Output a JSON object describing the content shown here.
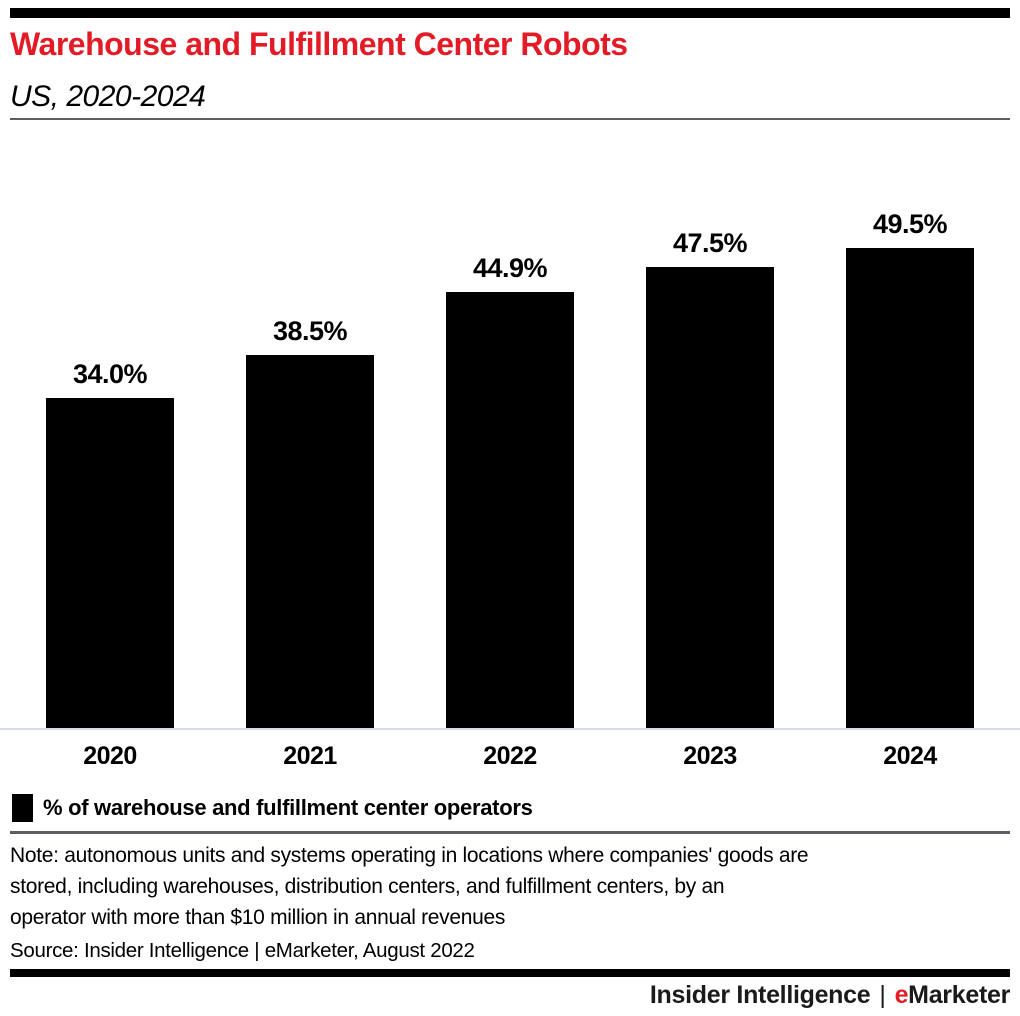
{
  "page": {
    "background": "#ffffff",
    "accent_red": "#e31b26",
    "divider_gray": "#5c5e63",
    "axis_line_color": "#d7dbe6"
  },
  "header": {
    "title": "Warehouse and Fulfillment Center Robots",
    "subtitle": "US, 2020-2024"
  },
  "chart_data": {
    "type": "bar",
    "title": "Warehouse and Fulfillment Center Robots",
    "subtitle": "US, 2020-2024",
    "categories": [
      "2020",
      "2021",
      "2022",
      "2023",
      "2024"
    ],
    "values": [
      34.0,
      38.5,
      44.9,
      47.5,
      49.5
    ],
    "value_labels": [
      "34.0%",
      "38.5%",
      "44.9%",
      "47.5%",
      "49.5%"
    ],
    "unit": "%",
    "xlabel": "",
    "ylabel": "",
    "ylim": [
      0,
      52
    ],
    "grid": false,
    "bar_color": "#000000",
    "legend": [
      {
        "label": "% of warehouse and fulfillment center operators",
        "color": "#000000"
      }
    ],
    "legend_position": "bottom-left"
  },
  "legend": {
    "label": "% of warehouse and fulfillment center operators",
    "swatch_color": "#000000"
  },
  "notes": {
    "note": "Note: autonomous units and systems operating in locations where companies' goods are\nstored, including warehouses, distribution centers, and fulfillment centers, by an\noperator with more than $10 million in annual revenues",
    "source": "Source: Insider Intelligence | eMarketer, August 2022"
  },
  "footer": {
    "brand_primary": "Insider Intelligence",
    "separator": "|",
    "brand_secondary_accent": "e",
    "brand_secondary_rest": "Marketer"
  }
}
